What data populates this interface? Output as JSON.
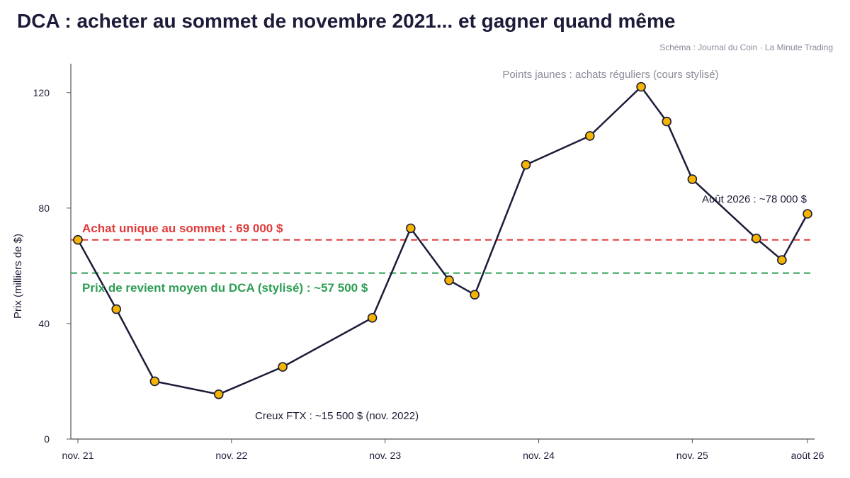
{
  "header": {
    "title": "DCA : acheter au sommet de novembre 2021... et gagner quand même",
    "credit": "Schéma : Journal du Coin · La Minute Trading"
  },
  "chart_data": {
    "type": "line",
    "title": "DCA : acheter au sommet de novembre 2021... et gagner quand même",
    "ylabel": "Prix (milliers de $)",
    "xlabel": "",
    "ylim": [
      0,
      130
    ],
    "xlim": [
      "2021-11",
      "2026-08"
    ],
    "yticks": [
      0,
      40,
      80,
      120
    ],
    "xticks": [
      {
        "date": "2021-11",
        "label": "nov. 21"
      },
      {
        "date": "2022-11",
        "label": "nov. 22"
      },
      {
        "date": "2023-11",
        "label": "nov. 23"
      },
      {
        "date": "2024-11",
        "label": "nov. 24"
      },
      {
        "date": "2025-11",
        "label": "nov. 25"
      },
      {
        "date": "2026-08",
        "label": "août 26"
      }
    ],
    "grid": false,
    "series": [
      {
        "name": "",
        "color": "#1c1c3a",
        "marker_color": "#f5b400",
        "points": [
          {
            "x": "2021-11",
            "y": 69
          },
          {
            "x": "2022-02",
            "y": 45
          },
          {
            "x": "2022-05",
            "y": 20
          },
          {
            "x": "2022-10",
            "y": 15.5
          },
          {
            "x": "2023-03",
            "y": 25
          },
          {
            "x": "2023-10",
            "y": 42
          },
          {
            "x": "2024-01",
            "y": 73
          },
          {
            "x": "2024-04",
            "y": 55
          },
          {
            "x": "2024-06",
            "y": 50
          },
          {
            "x": "2024-10",
            "y": 95
          },
          {
            "x": "2025-03",
            "y": 105
          },
          {
            "x": "2025-07",
            "y": 122
          },
          {
            "x": "2025-09",
            "y": 110
          },
          {
            "x": "2025-11",
            "y": 90
          },
          {
            "x": "2026-04",
            "y": 69.5
          },
          {
            "x": "2026-06",
            "y": 62
          },
          {
            "x": "2026-08",
            "y": 78
          }
        ]
      }
    ],
    "reference_lines": [
      {
        "y": 69,
        "label": "Achat unique au sommet : 69 000 $",
        "color": "#e03b3b",
        "style": "dashed"
      },
      {
        "y": 57.5,
        "label": "Prix de revient moyen du DCA (stylisé) : ~57 500 $",
        "color": "#2e9e55",
        "style": "dashed"
      }
    ],
    "annotations": [
      {
        "text": "Points jaunes : achats réguliers (cours stylisé)",
        "style": "gray"
      },
      {
        "text": "Creux FTX : ~15 500 $ (nov. 2022)",
        "style": "dark"
      },
      {
        "text": "Août 2026 : ~78 000 $",
        "style": "dark"
      }
    ]
  }
}
